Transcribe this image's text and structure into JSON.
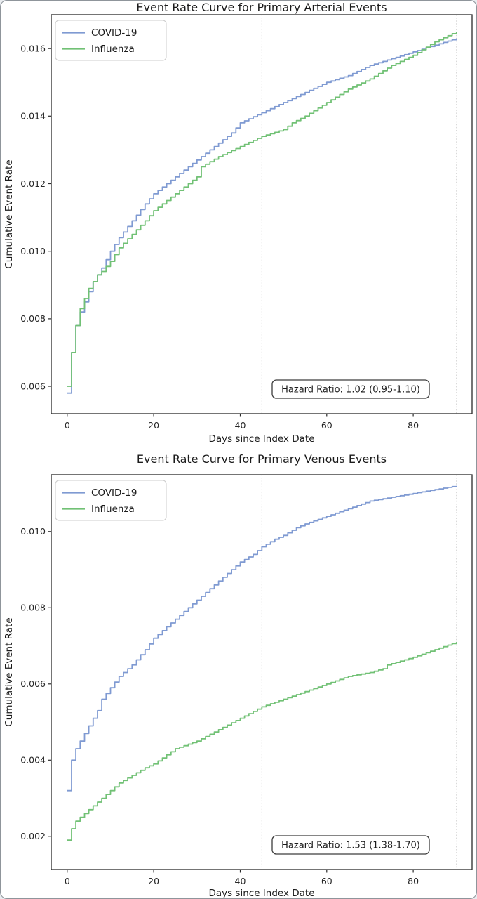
{
  "page": {
    "background": "#e9ecef",
    "card_border": "#8f959b"
  },
  "chart_data": [
    {
      "type": "line",
      "subtype": "step-cumulative-incidence",
      "title": "Event Rate Curve for Primary Arterial Events",
      "xlabel": "Days since Index Date",
      "ylabel": "Cumulative Event Rate",
      "annotation": "Hazard Ratio: 1.02 (0.95-1.10)",
      "legend_position": "upper left",
      "grid": "off",
      "x_ticks": [
        0,
        20,
        40,
        60,
        80
      ],
      "y_ticks": [
        0.006,
        0.008,
        0.01,
        0.012,
        0.014,
        0.016
      ],
      "xlim": [
        -3.7,
        93.6
      ],
      "ylim": [
        0.00519,
        0.017
      ],
      "reference_lines_x": [
        45,
        90
      ],
      "series": [
        {
          "name": "COVID-19",
          "color": "#7f9ad2",
          "points": [
            [
              0,
              0.0058
            ],
            [
              1,
              0.007
            ],
            [
              2,
              0.0078
            ],
            [
              3,
              0.0082
            ],
            [
              4,
              0.0085
            ],
            [
              5,
              0.0088
            ],
            [
              6,
              0.0091
            ],
            [
              7,
              0.0093
            ],
            [
              8,
              0.0095
            ],
            [
              10,
              0.01
            ],
            [
              12,
              0.0104
            ],
            [
              15,
              0.0109
            ],
            [
              18,
              0.0114
            ],
            [
              20,
              0.0117
            ],
            [
              23,
              0.012
            ],
            [
              25,
              0.0122
            ],
            [
              28,
              0.0125
            ],
            [
              30,
              0.0127
            ],
            [
              33,
              0.013
            ],
            [
              35,
              0.0132
            ],
            [
              38,
              0.0135
            ],
            [
              40,
              0.0138
            ],
            [
              45,
              0.0141
            ],
            [
              50,
              0.0144
            ],
            [
              55,
              0.0147
            ],
            [
              60,
              0.015
            ],
            [
              65,
              0.0152
            ],
            [
              70,
              0.0155
            ],
            [
              75,
              0.0157
            ],
            [
              80,
              0.0159
            ],
            [
              85,
              0.0161
            ],
            [
              90,
              0.0163
            ]
          ]
        },
        {
          "name": "Influenza",
          "color": "#71c175",
          "points": [
            [
              0,
              0.006
            ],
            [
              1,
              0.007
            ],
            [
              2,
              0.0078
            ],
            [
              3,
              0.0083
            ],
            [
              4,
              0.0086
            ],
            [
              5,
              0.0089
            ],
            [
              6,
              0.0091
            ],
            [
              7,
              0.0093
            ],
            [
              8,
              0.0094
            ],
            [
              10,
              0.0097
            ],
            [
              12,
              0.0101
            ],
            [
              15,
              0.0105
            ],
            [
              18,
              0.0109
            ],
            [
              20,
              0.0112
            ],
            [
              23,
              0.0115
            ],
            [
              25,
              0.0117
            ],
            [
              28,
              0.012
            ],
            [
              30,
              0.0122
            ],
            [
              31,
              0.0125
            ],
            [
              35,
              0.0128
            ],
            [
              40,
              0.0131
            ],
            [
              45,
              0.0134
            ],
            [
              50,
              0.0136
            ],
            [
              52,
              0.0138
            ],
            [
              55,
              0.014
            ],
            [
              60,
              0.0144
            ],
            [
              65,
              0.0148
            ],
            [
              70,
              0.0151
            ],
            [
              75,
              0.0155
            ],
            [
              80,
              0.0158
            ],
            [
              85,
              0.0162
            ],
            [
              90,
              0.0165
            ]
          ]
        }
      ]
    },
    {
      "type": "line",
      "subtype": "step-cumulative-incidence",
      "title": "Event Rate Curve for Primary Venous Events",
      "xlabel": "Days since Index Date",
      "ylabel": "Cumulative Event Rate",
      "annotation": "Hazard Ratio: 1.53 (1.38-1.70)",
      "legend_position": "upper left",
      "grid": "off",
      "x_ticks": [
        0,
        20,
        40,
        60,
        80
      ],
      "y_ticks": [
        0.002,
        0.004,
        0.006,
        0.008,
        0.01
      ],
      "xlim": [
        -3.7,
        93.6
      ],
      "ylim": [
        0.00113,
        0.01149
      ],
      "reference_lines_x": [
        45,
        90
      ],
      "series": [
        {
          "name": "COVID-19",
          "color": "#7f9ad2",
          "points": [
            [
              0,
              0.0032
            ],
            [
              1,
              0.004
            ],
            [
              2,
              0.0043
            ],
            [
              3,
              0.0045
            ],
            [
              4,
              0.0047
            ],
            [
              5,
              0.0049
            ],
            [
              6,
              0.0051
            ],
            [
              7,
              0.0053
            ],
            [
              8,
              0.0056
            ],
            [
              10,
              0.0059
            ],
            [
              12,
              0.0062
            ],
            [
              15,
              0.0065
            ],
            [
              18,
              0.0069
            ],
            [
              20,
              0.0072
            ],
            [
              23,
              0.0075
            ],
            [
              25,
              0.0077
            ],
            [
              28,
              0.008
            ],
            [
              30,
              0.0082
            ],
            [
              33,
              0.0085
            ],
            [
              35,
              0.0087
            ],
            [
              38,
              0.009
            ],
            [
              40,
              0.0092
            ],
            [
              43,
              0.0094
            ],
            [
              45,
              0.0096
            ],
            [
              48,
              0.0098
            ],
            [
              50,
              0.0099
            ],
            [
              53,
              0.0101
            ],
            [
              55,
              0.0102
            ],
            [
              60,
              0.0104
            ],
            [
              65,
              0.0106
            ],
            [
              70,
              0.0108
            ],
            [
              75,
              0.0109
            ],
            [
              80,
              0.011
            ],
            [
              85,
              0.0111
            ],
            [
              90,
              0.0112
            ]
          ]
        },
        {
          "name": "Influenza",
          "color": "#71c175",
          "points": [
            [
              0,
              0.0019
            ],
            [
              1,
              0.0022
            ],
            [
              2,
              0.0024
            ],
            [
              3,
              0.0025
            ],
            [
              4,
              0.0026
            ],
            [
              5,
              0.0027
            ],
            [
              7,
              0.0029
            ],
            [
              10,
              0.0032
            ],
            [
              12,
              0.0034
            ],
            [
              15,
              0.0036
            ],
            [
              18,
              0.0038
            ],
            [
              20,
              0.0039
            ],
            [
              25,
              0.0043
            ],
            [
              30,
              0.0045
            ],
            [
              35,
              0.0048
            ],
            [
              40,
              0.0051
            ],
            [
              45,
              0.0054
            ],
            [
              50,
              0.0056
            ],
            [
              55,
              0.0058
            ],
            [
              60,
              0.006
            ],
            [
              65,
              0.0062
            ],
            [
              70,
              0.0063
            ],
            [
              73,
              0.0064
            ],
            [
              74,
              0.0065
            ],
            [
              80,
              0.0067
            ],
            [
              85,
              0.0069
            ],
            [
              90,
              0.0071
            ]
          ]
        }
      ]
    }
  ]
}
